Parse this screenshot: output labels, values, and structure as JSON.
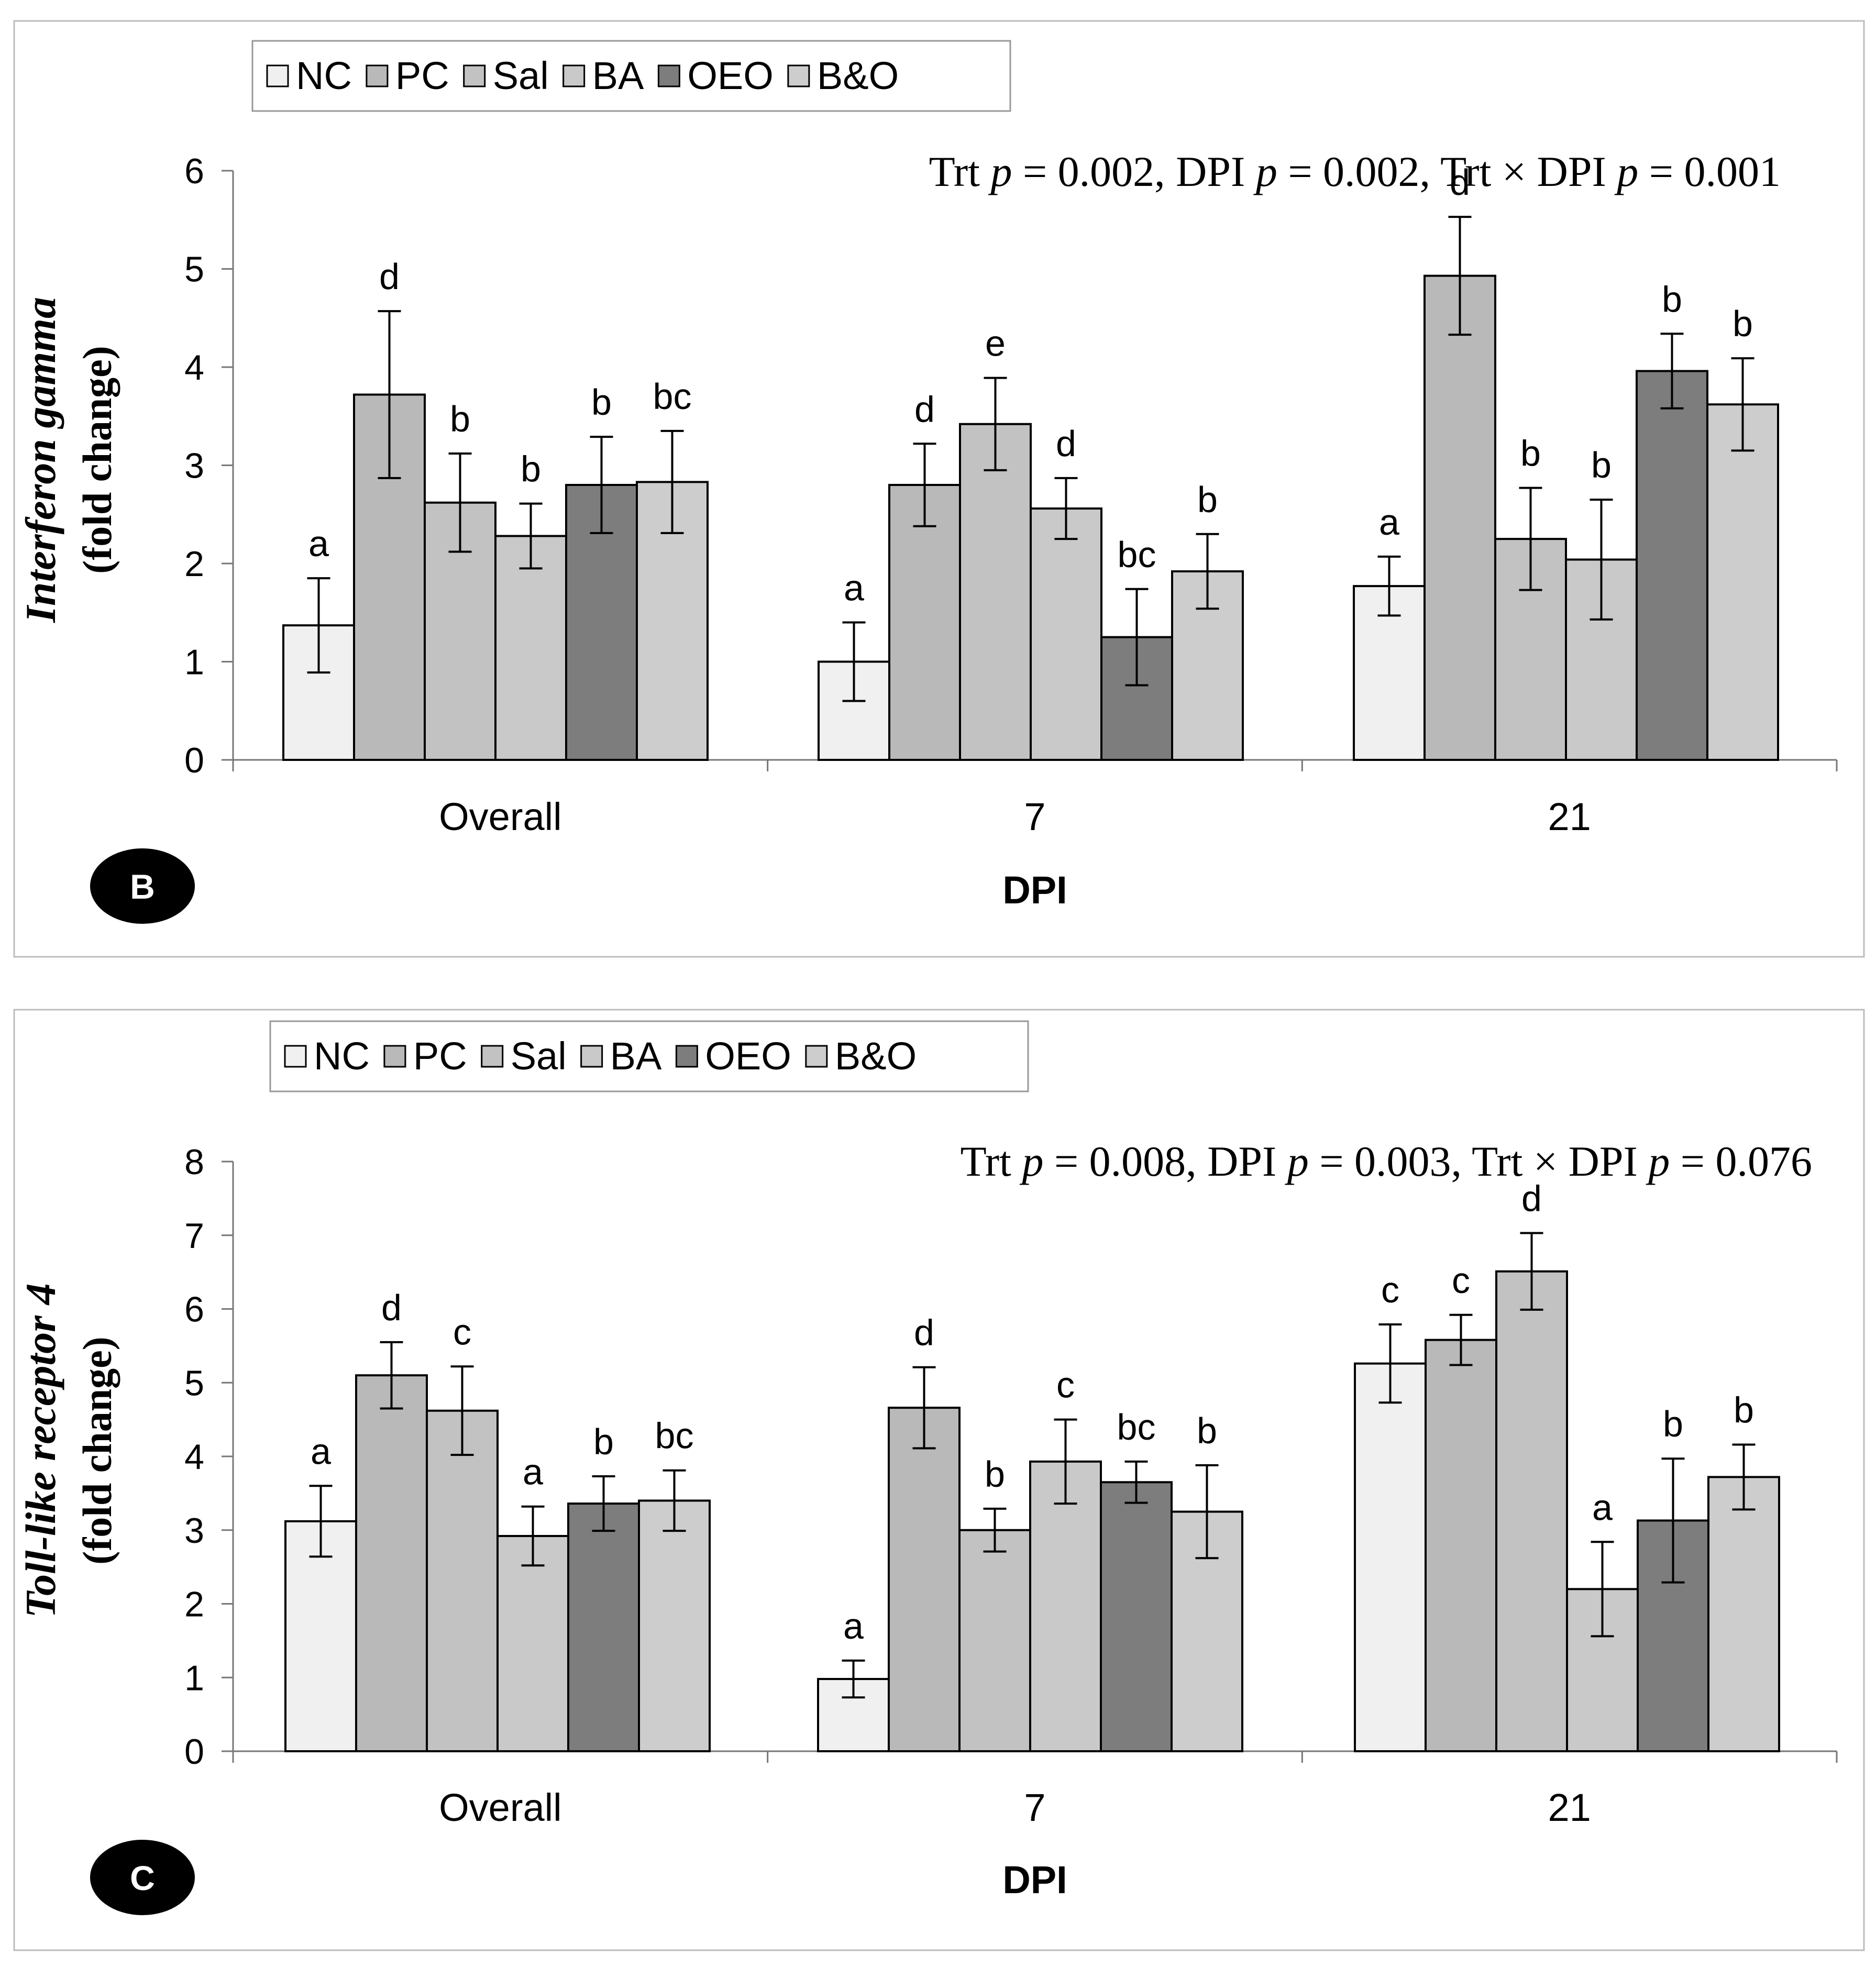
{
  "chart_data": [
    {
      "type": "bar",
      "panel_label": "B",
      "title": "",
      "legend": [
        "NC",
        "PC",
        "Sal",
        "BA",
        "OEO",
        "B&O"
      ],
      "categories": [
        "Overall",
        "7",
        "21"
      ],
      "xlabel": "DPI",
      "ylabel_italic": "Interferon gamma",
      "ylabel_sub": "(fold change)",
      "ylim": [
        0,
        6
      ],
      "yticks": [
        "0",
        "1",
        "2",
        "3",
        "4",
        "5",
        "6"
      ],
      "stats": {
        "trt": "Trt",
        "p": "p",
        "eq1": " = 0.002, DPI ",
        "eq2": " = 0.002,  Trt × DPI ",
        "eq3": " = 0.001"
      },
      "series": [
        {
          "name": "NC",
          "values": [
            1.37,
            1.0,
            1.77
          ],
          "errors": [
            0.48,
            0.4,
            0.3
          ],
          "letters": [
            "a",
            "a",
            "a"
          ]
        },
        {
          "name": "PC",
          "values": [
            3.72,
            2.8,
            4.93
          ],
          "errors": [
            0.85,
            0.42,
            0.6
          ],
          "letters": [
            "d",
            "d",
            "d"
          ]
        },
        {
          "name": "Sal",
          "values": [
            2.62,
            3.42,
            2.25
          ],
          "errors": [
            0.5,
            0.47,
            0.52
          ],
          "letters": [
            "b",
            "e",
            "b"
          ]
        },
        {
          "name": "BA",
          "values": [
            2.28,
            2.56,
            2.04
          ],
          "errors": [
            0.33,
            0.31,
            0.61
          ],
          "letters": [
            "b",
            "d",
            "b"
          ]
        },
        {
          "name": "OEO",
          "values": [
            2.8,
            1.25,
            3.96
          ],
          "errors": [
            0.49,
            0.49,
            0.38
          ],
          "letters": [
            "b",
            "bc",
            "b"
          ]
        },
        {
          "name": "B&O",
          "values": [
            2.83,
            1.92,
            3.62
          ],
          "errors": [
            0.52,
            0.38,
            0.47
          ],
          "letters": [
            "bc",
            "b",
            "b"
          ]
        }
      ]
    },
    {
      "type": "bar",
      "panel_label": "C",
      "title": "",
      "legend": [
        "NC",
        "PC",
        "Sal",
        "BA",
        "OEO",
        "B&O"
      ],
      "categories": [
        "Overall",
        "7",
        "21"
      ],
      "xlabel": "DPI",
      "ylabel_italic": "Toll-like receptor 4",
      "ylabel_sub": "(fold change)",
      "ylim": [
        0,
        8
      ],
      "yticks": [
        "0",
        "1",
        "2",
        "3",
        "4",
        "5",
        "6",
        "7",
        "8"
      ],
      "stats": {
        "trt": "Trt",
        "p": "p",
        "eq1": " = 0.008, DPI ",
        "eq2": " = 0.003,  Trt × DPI ",
        "eq3": " = 0.076"
      },
      "series": [
        {
          "name": "NC",
          "values": [
            3.12,
            0.98,
            5.26
          ],
          "errors": [
            0.48,
            0.25,
            0.53
          ],
          "letters": [
            "a",
            "a",
            "c"
          ]
        },
        {
          "name": "PC",
          "values": [
            5.1,
            4.66,
            5.58
          ],
          "errors": [
            0.45,
            0.55,
            0.34
          ],
          "letters": [
            "d",
            "d",
            "c"
          ]
        },
        {
          "name": "Sal",
          "values": [
            4.62,
            3.0,
            6.51
          ],
          "errors": [
            0.6,
            0.29,
            0.52
          ],
          "letters": [
            "c",
            "b",
            "d"
          ]
        },
        {
          "name": "BA",
          "values": [
            2.92,
            3.93,
            2.2
          ],
          "errors": [
            0.4,
            0.57,
            0.64
          ],
          "letters": [
            "a",
            "c",
            "a"
          ]
        },
        {
          "name": "OEO",
          "values": [
            3.36,
            3.65,
            3.13
          ],
          "errors": [
            0.37,
            0.28,
            0.84
          ],
          "letters": [
            "b",
            "bc",
            "b"
          ]
        },
        {
          "name": "B&O",
          "values": [
            3.4,
            3.25,
            3.72
          ],
          "errors": [
            0.41,
            0.63,
            0.44
          ],
          "letters": [
            "bc",
            "b",
            "b"
          ]
        }
      ]
    }
  ],
  "colors": {
    "NC": "#f0f0f0",
    "PC": "#b9b9b9",
    "Sal": "#c2c2c2",
    "BA": "#c9c9c9",
    "OEO": "#7d7d7d",
    "B&O": "#cdcdcd"
  }
}
